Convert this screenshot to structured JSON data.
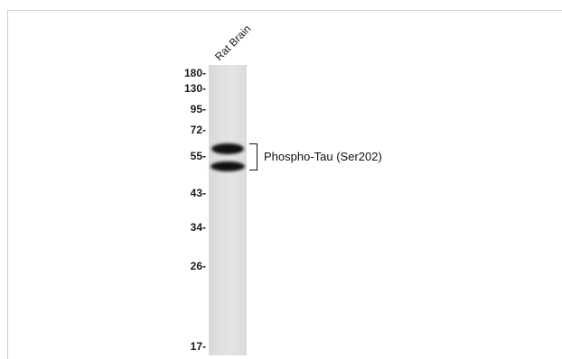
{
  "lane_label": "Rat Brain",
  "band_label": "Phospho-Tau (Ser202)",
  "markers": [
    {
      "label": "180-"
    },
    {
      "label": "130-"
    },
    {
      "label": "95-"
    },
    {
      "label": "72-"
    },
    {
      "label": "55-"
    },
    {
      "label": "43-"
    },
    {
      "label": "34-"
    },
    {
      "label": "26-"
    },
    {
      "label": "17-"
    }
  ]
}
